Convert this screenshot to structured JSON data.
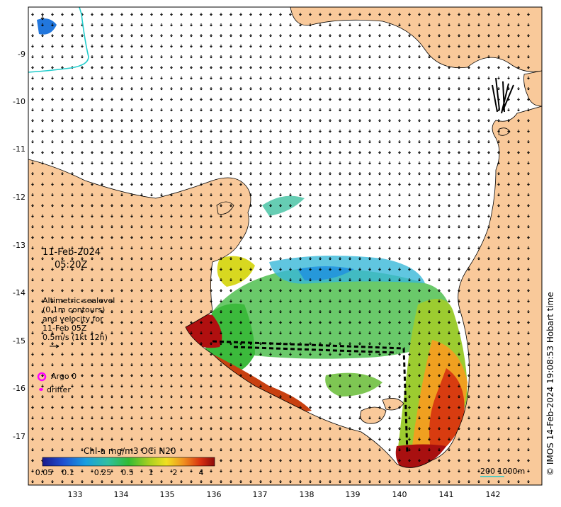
{
  "date": "11-Feb-2024",
  "time": "05:20Z",
  "legend_lines": [
    "Altimetric sealevel",
    "(0.1m contours)",
    "and velocity for",
    "11-Feb 05Z",
    "0.5m/s (1kt 12h)"
  ],
  "argo_label": "Argo 0",
  "drifter_label": "drifter",
  "colorbar": {
    "title": "Chl-a mg/m3 OCi N20",
    "ticks": [
      "0.05",
      "0.1",
      "0.25",
      "0.5",
      "1",
      "2",
      "4"
    ]
  },
  "scale_label": "200  1000m",
  "credit": "© IMOS 14-Feb-2024 19:08:53 Hobart time",
  "x_ticks": [
    "133",
    "134",
    "135",
    "136",
    "137",
    "138",
    "139",
    "140",
    "141",
    "142"
  ],
  "y_ticks": [
    "-9",
    "-10",
    "-11",
    "-12",
    "-13",
    "-14",
    "-15",
    "-16",
    "-17"
  ],
  "colors": {
    "land": "#f9c99a",
    "ocean": "#ffffff",
    "argo": "#ff00ff",
    "drifter": "#ff00ff",
    "contour": "#22cccc"
  }
}
